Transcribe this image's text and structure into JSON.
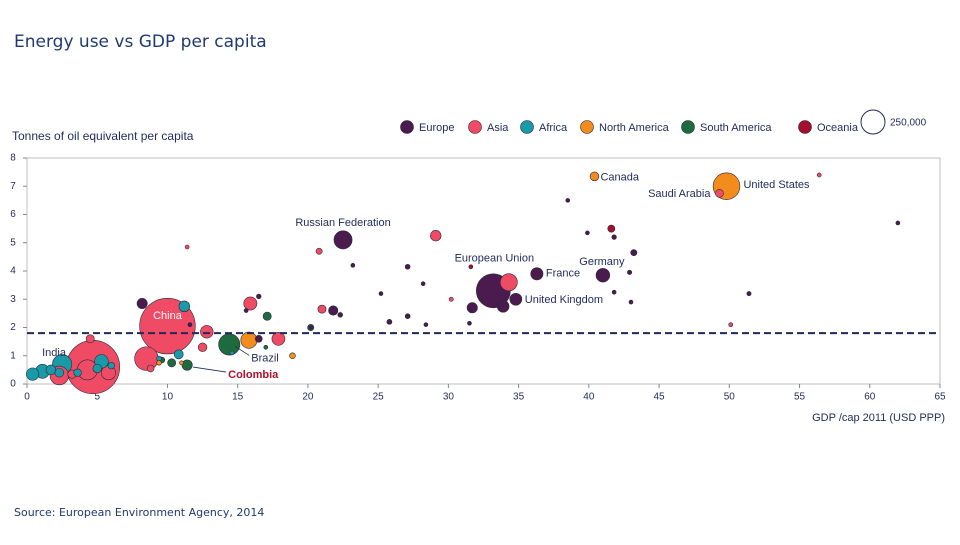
{
  "chart_data": {
    "type": "bubble",
    "title": "Energy use vs GDP per capita",
    "ylabel": "Tonnes of oil equivalent per capita",
    "xlabel": "GDP /cap 2011 (USD PPP)",
    "source": "Source: European Environment Agency, 2014",
    "xlim": [
      0,
      65
    ],
    "xticks": [
      0,
      5,
      10,
      15,
      20,
      25,
      30,
      35,
      40,
      45,
      50,
      55,
      60,
      65
    ],
    "ylim": [
      0,
      8
    ],
    "yticks": [
      0,
      1,
      2,
      3,
      4,
      5,
      6,
      7,
      8
    ],
    "hline": 1.8,
    "size_legend": {
      "value": 250000,
      "label": "250,000"
    },
    "series": [
      {
        "name": "Europe",
        "color": "#4b1a4f",
        "labels": [
          "Russian Federation",
          "European Union",
          "France",
          "Germany",
          "United Kingdom",
          null,
          null,
          null,
          null,
          null,
          null,
          null,
          null,
          null,
          null,
          null,
          null,
          null,
          null,
          null,
          null,
          null,
          null,
          null,
          null,
          null,
          null,
          null,
          null,
          null,
          null,
          null
        ],
        "x": [
          22.5,
          33.2,
          36.3,
          41.0,
          34.8,
          33.9,
          31.7,
          21.8,
          43.2,
          39.9,
          62.0,
          41.8,
          27.1,
          42.9,
          51.4,
          41.8,
          43.0,
          25.8,
          25.2,
          8.2,
          16.5,
          15.6,
          22.3,
          23.2,
          20.2,
          27.1,
          31.5,
          28.4,
          38.5,
          16.5,
          11.6,
          28.2
        ],
        "values": [
          5.1,
          3.3,
          3.9,
          3.85,
          3.0,
          2.75,
          2.7,
          2.6,
          4.65,
          5.35,
          5.7,
          5.2,
          4.15,
          3.95,
          3.2,
          3.25,
          2.9,
          2.2,
          3.2,
          2.85,
          3.1,
          2.6,
          2.45,
          4.2,
          2.0,
          2.4,
          2.15,
          2.1,
          6.5,
          1.6,
          2.1,
          3.55
        ],
        "sizes": [
          143000,
          503000,
          65400,
          81800,
          62700,
          60700,
          46200,
          38500,
          16700,
          5400,
          5000,
          9400,
          10500,
          8400,
          7900,
          5600,
          4600,
          11100,
          5400,
          45700,
          9500,
          7300,
          10000,
          1300,
          4400,
          10600,
          1100,
          400,
          300,
          21400,
          7200,
          2000
        ]
      },
      {
        "name": "Asia",
        "color": "#f04b64",
        "labels": [
          "China",
          "India",
          "Saudi Arabia",
          null,
          null,
          null,
          null,
          null,
          null,
          null,
          null,
          null,
          null,
          null,
          null,
          null,
          null,
          null,
          null,
          null,
          null,
          null
        ],
        "x": [
          10.0,
          4.7,
          49.3,
          34.3,
          29.1,
          15.9,
          20.8,
          21.0,
          12.8,
          17.9,
          8.5,
          2.3,
          5.8,
          30.2,
          56.4,
          50.1,
          11.4,
          4.5,
          12.5,
          4.3,
          8.8,
          3.2
        ],
        "values": [
          2.05,
          0.6,
          6.75,
          3.6,
          5.25,
          2.85,
          4.7,
          2.65,
          1.85,
          1.6,
          0.9,
          0.3,
          0.4,
          3.0,
          7.4,
          2.1,
          4.85,
          1.6,
          1.3,
          0.5,
          0.55,
          0.35
        ],
        "sizes": [
          1344000,
          1241000,
          28100,
          127800,
          49800,
          75400,
          16600,
          28900,
          69500,
          73600,
          242300,
          150500,
          87800,
          7800,
          2800,
          7100,
          5100,
          29300,
          33000,
          176700,
          20900,
          30500
        ]
      },
      {
        "name": "Africa",
        "color": "#1a9aa8",
        "labels": [
          null,
          null,
          null,
          null,
          null,
          null,
          null,
          null,
          null,
          null,
          null,
          null,
          null
        ],
        "x": [
          11.2,
          5.3,
          10.8,
          2.5,
          0.4,
          1.1,
          5.0,
          9.4,
          14.6,
          6.0,
          1.7,
          2.3,
          3.6
        ],
        "values": [
          2.75,
          0.8,
          1.05,
          0.7,
          0.35,
          0.45,
          0.55,
          0.9,
          1.1,
          0.65,
          0.5,
          0.4,
          0.4
        ],
        "sizes": [
          50600,
          82500,
          36000,
          162500,
          67800,
          84700,
          32300,
          10700,
          2000,
          19600,
          41600,
          34300,
          25000
        ]
      },
      {
        "name": "North America",
        "color": "#f28c1c",
        "labels": [
          "Canada",
          "United States",
          null,
          null,
          null,
          null
        ],
        "x": [
          40.4,
          49.8,
          15.8,
          18.9,
          9.4,
          11.0
        ],
        "values": [
          7.35,
          7.0,
          1.55,
          1.0,
          0.75,
          0.75
        ],
        "sizes": [
          34500,
          311600,
          115000,
          15000,
          10000,
          5000
        ]
      },
      {
        "name": "South America",
        "color": "#1e6b3e",
        "labels": [
          "Brazil",
          "Colombia",
          null,
          null,
          null,
          null,
          null
        ],
        "x": [
          14.4,
          11.4,
          17.1,
          20.2,
          9.6,
          10.3,
          17.0
        ],
        "values": [
          1.4,
          0.67,
          2.4,
          2.0,
          0.85,
          0.75,
          1.3
        ],
        "sizes": [
          196700,
          46900,
          29300,
          17300,
          15000,
          29400,
          3400
        ]
      },
      {
        "name": "Oceania",
        "color": "#a50f2d",
        "labels": [
          null,
          null
        ],
        "x": [
          41.6,
          31.6
        ],
        "values": [
          5.5,
          4.15
        ],
        "sizes": [
          22300,
          4400
        ]
      }
    ]
  }
}
